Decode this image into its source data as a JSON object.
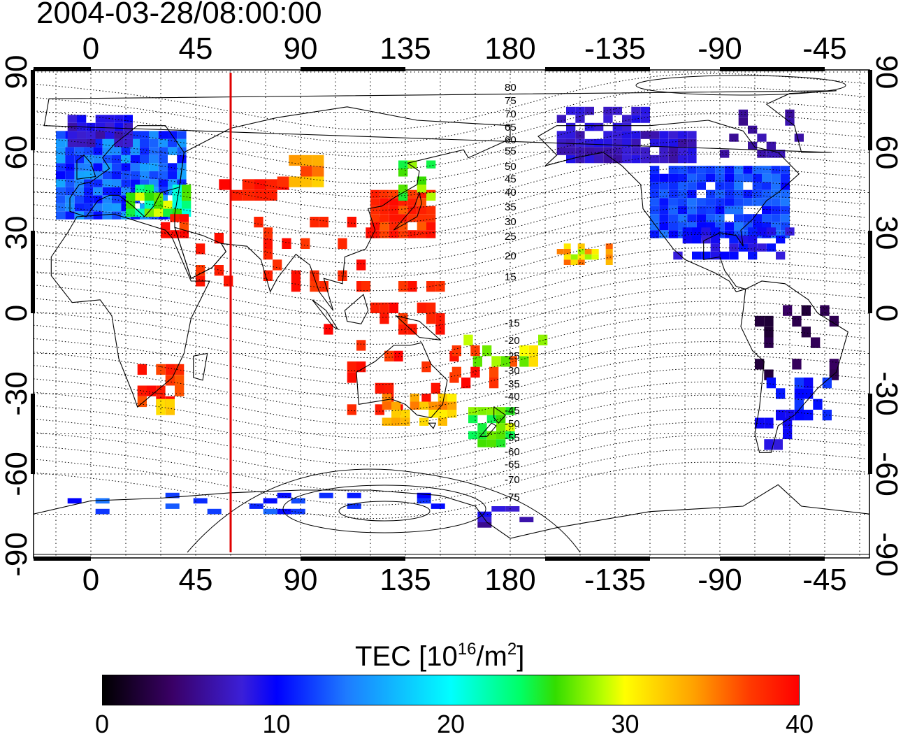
{
  "title": "2004-03-28/08:00:00",
  "longitude_ticks": [
    "0",
    "45",
    "90",
    "135",
    "180",
    "-135",
    "-90",
    "-45"
  ],
  "latitude_ticks": [
    "90",
    "60",
    "30",
    "0",
    "-30",
    "-60",
    "-90"
  ],
  "contour_labels": [
    "80",
    "75",
    "70",
    "65",
    "60",
    "55",
    "50",
    "45",
    "40",
    "35",
    "30",
    "25",
    "20",
    "15",
    "-15",
    "-20",
    "-25",
    "-30",
    "-35",
    "-40",
    "-45",
    "-50",
    "-55",
    "-60",
    "-65",
    "-70",
    "-75"
  ],
  "meridian_marker_longitude": 60,
  "colorbar": {
    "title_prefix": "TEC  [10",
    "title_exp1": "16",
    "title_mid": "/m",
    "title_exp2": "2",
    "title_suffix": "]",
    "min": 0,
    "max": 40,
    "tick_labels": [
      "0",
      "10",
      "20",
      "30",
      "40"
    ],
    "colors": [
      "#000000",
      "#3a0066",
      "#0000ff",
      "#00ffff",
      "#00ff66",
      "#ffff00",
      "#ff0000"
    ]
  }
}
